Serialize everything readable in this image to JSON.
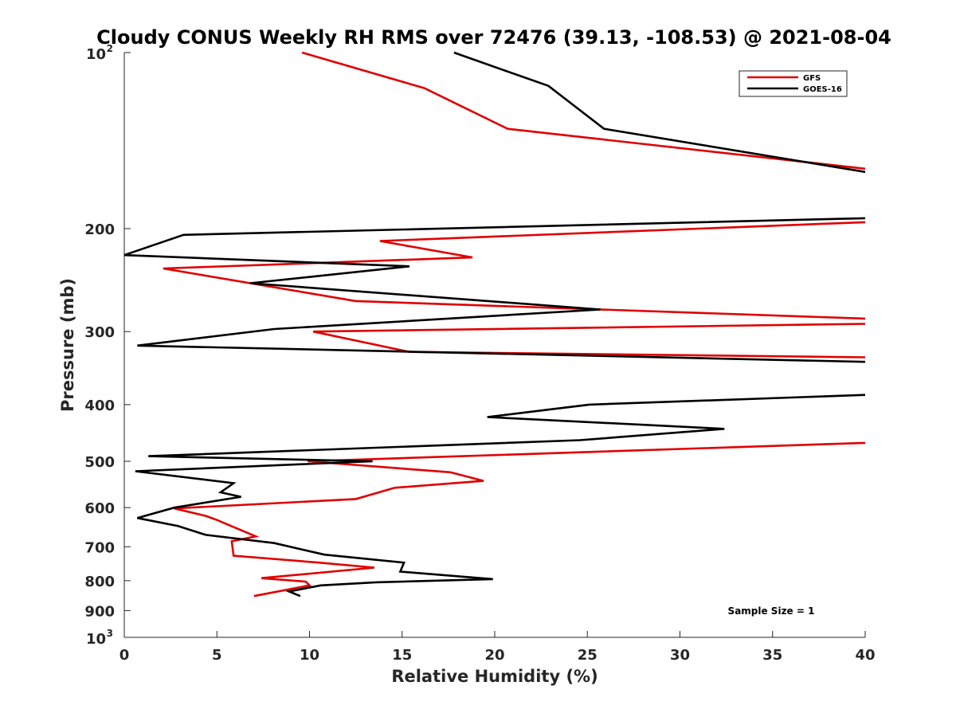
{
  "chart_data": {
    "type": "line",
    "title": "Cloudy CONUS Weekly RH RMS over 72476 (39.13, -108.53) @ 2021-08-04",
    "xlabel": "Relative Humidity (%)",
    "ylabel": "Pressure (mb)",
    "xlim": [
      0,
      40
    ],
    "ylim": [
      100,
      1000
    ],
    "y_scale": "log",
    "y_reversed": true,
    "grid": false,
    "legend_position": "top-right",
    "sample_note": "Sample Size = 1",
    "x_ticks": [
      "0",
      "5",
      "10",
      "15",
      "20",
      "25",
      "30",
      "35",
      "40"
    ],
    "y_ticks": [
      {
        "value": 100,
        "base": "10",
        "exp": "2"
      },
      {
        "value": 200,
        "label": "200"
      },
      {
        "value": 300,
        "label": "300"
      },
      {
        "value": 400,
        "label": "400"
      },
      {
        "value": 500,
        "label": "500"
      },
      {
        "value": 600,
        "label": "600"
      },
      {
        "value": 700,
        "label": "700"
      },
      {
        "value": 800,
        "label": "800"
      },
      {
        "value": 900,
        "label": "900"
      },
      {
        "value": 1000,
        "base": "10",
        "exp": "3"
      }
    ],
    "series": [
      {
        "name": "GFS",
        "color": "#e00000",
        "points": [
          [
            9.6,
            100
          ],
          [
            16.2,
            115
          ],
          [
            20.7,
            135
          ],
          [
            40,
            158
          ],
          [
            40,
            195
          ],
          [
            13.8,
            210
          ],
          [
            18.8,
            224
          ],
          [
            2.1,
            234
          ],
          [
            12.5,
            266
          ],
          [
            40,
            285
          ],
          [
            40,
            291
          ],
          [
            10.2,
            300
          ],
          [
            15.4,
            325
          ],
          [
            40,
            332
          ],
          [
            40,
            465
          ],
          [
            9.9,
            500
          ],
          [
            17.6,
            522
          ],
          [
            19.4,
            540
          ],
          [
            14.6,
            555
          ],
          [
            12.5,
            580
          ],
          [
            2.7,
            602
          ],
          [
            4.4,
            620
          ],
          [
            5.0,
            630
          ],
          [
            7.1,
            672
          ],
          [
            5.8,
            685
          ],
          [
            5.9,
            725
          ],
          [
            10.5,
            745
          ],
          [
            13.5,
            760
          ],
          [
            7.4,
            792
          ],
          [
            9.8,
            803
          ],
          [
            10.0,
            815
          ],
          [
            7.0,
            850
          ]
        ]
      },
      {
        "name": "GOES-16",
        "color": "#000000",
        "points": [
          [
            17.8,
            100
          ],
          [
            22.9,
            114
          ],
          [
            25.9,
            135
          ],
          [
            40,
            160
          ],
          [
            40,
            192
          ],
          [
            3.2,
            205
          ],
          [
            0,
            222
          ],
          [
            15.4,
            232
          ],
          [
            6.8,
            248
          ],
          [
            25.7,
            275
          ],
          [
            8.1,
            297
          ],
          [
            0.7,
            317
          ],
          [
            40,
            338
          ],
          [
            40,
            385
          ],
          [
            25.1,
            400
          ],
          [
            19.6,
            420
          ],
          [
            32.4,
            440
          ],
          [
            24.6,
            460
          ],
          [
            1.3,
            490
          ],
          [
            13.4,
            500
          ],
          [
            0.6,
            520
          ],
          [
            5.9,
            545
          ],
          [
            5.2,
            565
          ],
          [
            6.3,
            575
          ],
          [
            2.7,
            600
          ],
          [
            0.7,
            625
          ],
          [
            2.9,
            645
          ],
          [
            4.4,
            668
          ],
          [
            8.1,
            690
          ],
          [
            10.8,
            722
          ],
          [
            15.1,
            745
          ],
          [
            14.9,
            772
          ],
          [
            19.9,
            795
          ],
          [
            13.6,
            805
          ],
          [
            10.6,
            815
          ],
          [
            8.9,
            835
          ],
          [
            9.5,
            850
          ]
        ]
      }
    ]
  }
}
